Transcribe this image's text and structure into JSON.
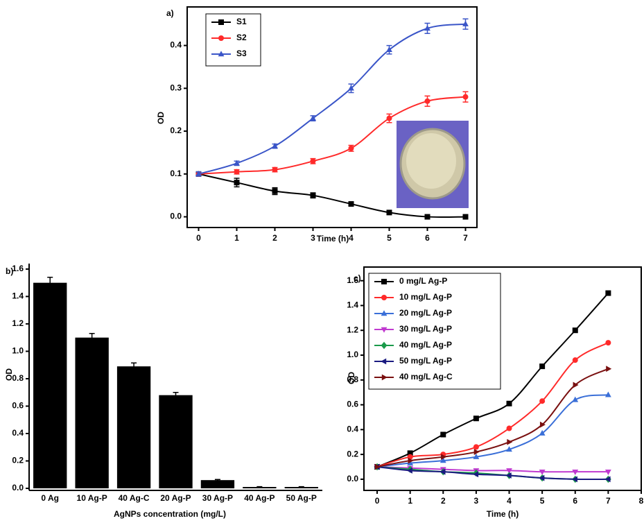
{
  "chart_data": [
    {
      "type": "line",
      "title": "a)",
      "xlabel": "Time (h)",
      "ylabel": "OD",
      "x": [
        0,
        1,
        2,
        3,
        4,
        5,
        6,
        7
      ],
      "xlim": [
        -0.3,
        7.3
      ],
      "xticks": [
        0,
        1,
        2,
        3,
        4,
        5,
        6,
        7
      ],
      "ylim": [
        -0.025,
        0.49
      ],
      "yticks": [
        {
          "value": 0,
          "label": "0.0"
        },
        0.1,
        0.2,
        0.3,
        0.4
      ],
      "legend": "upper-left",
      "series": [
        {
          "name": "S1",
          "color": "#000000",
          "marker": "square",
          "values": [
            0.1,
            0.08,
            0.06,
            0.05,
            0.03,
            0.01,
            0,
            0
          ],
          "errors": [
            0.005,
            0.01,
            0.008,
            0.006,
            0.004,
            0.004,
            0.004,
            0.004
          ]
        },
        {
          "name": "S2",
          "color": "#ff2a2a",
          "marker": "circle",
          "values": [
            0.1,
            0.105,
            0.11,
            0.13,
            0.16,
            0.23,
            0.27,
            0.28
          ],
          "errors": [
            0.005,
            0.005,
            0.005,
            0.006,
            0.007,
            0.01,
            0.012,
            0.012
          ]
        },
        {
          "name": "S3",
          "color": "#3a55c8",
          "marker": "triangle-up",
          "values": [
            0.1,
            0.125,
            0.165,
            0.23,
            0.3,
            0.39,
            0.44,
            0.45
          ],
          "errors": [
            0.005,
            0.005,
            0.005,
            0.006,
            0.01,
            0.01,
            0.012,
            0.012
          ]
        }
      ]
    },
    {
      "type": "bar",
      "title": "b)",
      "xlabel": "AgNPs concentration (mg/L)",
      "ylabel": "OD",
      "categories": [
        "0 Ag",
        "10 Ag-P",
        "40 Ag-C",
        "20 Ag-P",
        "30 Ag-P",
        "40 Ag-P",
        "50 Ag-P"
      ],
      "values": [
        1.5,
        1.1,
        0.89,
        0.68,
        0.06,
        0.01,
        0.01
      ],
      "errors": [
        0.04,
        0.03,
        0.025,
        0.02,
        0.005,
        0.002,
        0.002
      ],
      "color": "#000000",
      "ylim": [
        -0.015,
        1.64
      ],
      "yticks": [
        {
          "value": 0,
          "label": "0.0"
        },
        0.2,
        0.4,
        0.6,
        0.8,
        {
          "value": 1,
          "label": "1.0"
        },
        1.2,
        1.4,
        1.6
      ]
    },
    {
      "type": "line",
      "title": "c)",
      "xlabel": "Time (h)",
      "ylabel": "OD",
      "x": [
        0,
        1,
        2,
        3,
        4,
        5,
        6,
        7
      ],
      "xlim": [
        -0.4,
        8
      ],
      "xticks": [
        0,
        1,
        2,
        3,
        4,
        5,
        6,
        7,
        8
      ],
      "ylim": [
        -0.09,
        1.71
      ],
      "yticks": [
        {
          "value": 0,
          "label": "0.0"
        },
        0.2,
        0.4,
        0.6,
        0.8,
        {
          "value": 1,
          "label": "1.0"
        },
        1.2,
        1.4,
        1.6
      ],
      "legend": "upper-left",
      "series": [
        {
          "name": "0 mg/L Ag-P",
          "color": "#000000",
          "marker": "square",
          "values": [
            0.1,
            0.21,
            0.36,
            0.49,
            0.61,
            0.91,
            1.2,
            1.5
          ]
        },
        {
          "name": "10 mg/L Ag-P",
          "color": "#ff2a2a",
          "marker": "circle",
          "values": [
            0.1,
            0.18,
            0.2,
            0.26,
            0.41,
            0.63,
            0.96,
            1.1
          ]
        },
        {
          "name": "20 mg/L Ag-P",
          "color": "#3a6fd8",
          "marker": "triangle-up",
          "values": [
            0.1,
            0.13,
            0.15,
            0.18,
            0.24,
            0.37,
            0.64,
            0.68
          ]
        },
        {
          "name": "30 mg/L Ag-P",
          "color": "#c03ad0",
          "marker": "triangle-down",
          "values": [
            0.1,
            0.09,
            0.08,
            0.07,
            0.07,
            0.06,
            0.06,
            0.06
          ]
        },
        {
          "name": "40 mg/L Ag-P",
          "color": "#1a9a4a",
          "marker": "diamond",
          "values": [
            0.1,
            0.08,
            0.06,
            0.05,
            0.03,
            0.01,
            0,
            0
          ]
        },
        {
          "name": "50 mg/L Ag-P",
          "color": "#1a1a80",
          "marker": "triangle-left",
          "values": [
            0.1,
            0.07,
            0.06,
            0.04,
            0.03,
            0.01,
            0,
            0
          ]
        },
        {
          "name": "40 mg/L Ag-C",
          "color": "#7a1010",
          "marker": "triangle-right",
          "values": [
            0.1,
            0.15,
            0.18,
            0.22,
            0.3,
            0.44,
            0.76,
            0.89
          ]
        }
      ]
    }
  ]
}
